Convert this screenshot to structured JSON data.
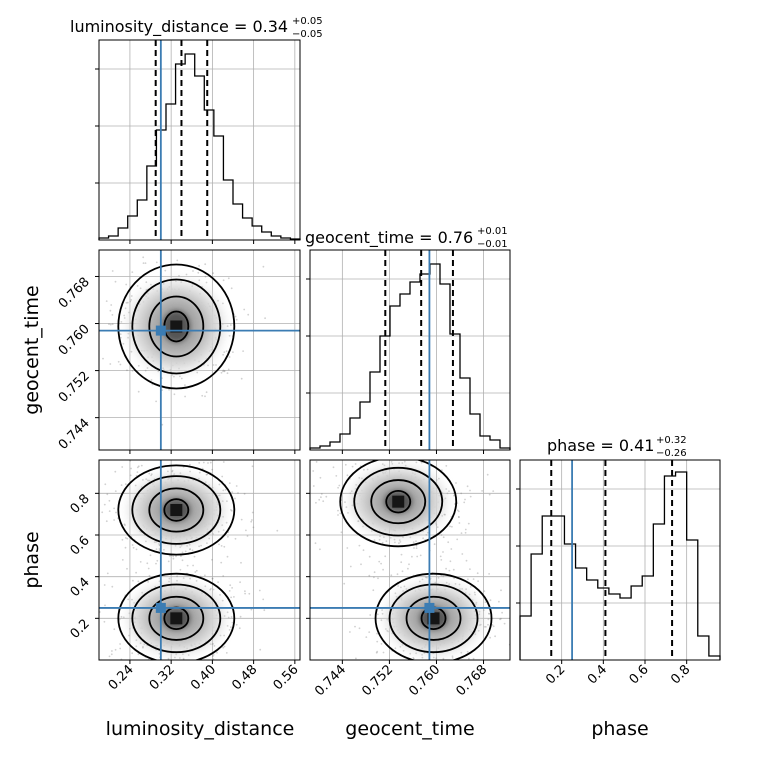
{
  "chart_data": {
    "type": "corner",
    "parameters": [
      "luminosity_distance",
      "geocent_time",
      "phase"
    ],
    "titles": [
      {
        "label": "luminosity_distance = 0.34",
        "sup": "+0.05",
        "sub": "−0.05"
      },
      {
        "label": "geocent_time = 0.76",
        "sup": "+0.01",
        "sub": "−0.01"
      },
      {
        "label": "phase = 0.41",
        "sup": "+0.32",
        "sub": "−0.26"
      }
    ],
    "axis_labels": [
      "luminosity_distance",
      "geocent_time",
      "phase"
    ],
    "ranges": {
      "luminosity_distance": [
        0.18,
        0.57
      ],
      "geocent_time": [
        0.7385,
        0.7725
      ],
      "phase": [
        0.0,
        0.96
      ]
    },
    "ticks": {
      "luminosity_distance": {
        "values": [
          0.24,
          0.32,
          0.4,
          0.48,
          0.56
        ],
        "labels": [
          "0.24",
          "0.32",
          "0.40",
          "0.48",
          "0.56"
        ]
      },
      "geocent_time": {
        "values": [
          0.744,
          0.752,
          0.76,
          0.768
        ],
        "labels": [
          "0.744",
          "0.752",
          "0.760",
          "0.768"
        ]
      },
      "phase": {
        "values": [
          0.2,
          0.4,
          0.6,
          0.8
        ],
        "labels": [
          "0.2",
          "0.4",
          "0.6",
          "0.8"
        ]
      }
    },
    "truths": {
      "luminosity_distance": 0.3,
      "geocent_time": 0.7588,
      "phase": 0.25
    },
    "quantiles": {
      "luminosity_distance": [
        0.29,
        0.34,
        0.39
      ],
      "geocent_time": [
        0.7513,
        0.7574,
        0.7628
      ],
      "phase": [
        0.15,
        0.41,
        0.73
      ]
    },
    "histograms": {
      "luminosity_distance": [
        0.01,
        0.02,
        0.06,
        0.12,
        0.2,
        0.37,
        0.55,
        0.68,
        0.88,
        0.93,
        0.82,
        0.65,
        0.52,
        0.3,
        0.18,
        0.11,
        0.07,
        0.04,
        0.02,
        0.01,
        0.005
      ],
      "geocent_time": [
        0.01,
        0.02,
        0.04,
        0.08,
        0.16,
        0.24,
        0.39,
        0.57,
        0.72,
        0.78,
        0.84,
        0.88,
        0.93,
        0.83,
        0.58,
        0.36,
        0.18,
        0.07,
        0.05,
        0.01
      ],
      "phase": [
        0.22,
        0.53,
        0.72,
        0.72,
        0.58,
        0.46,
        0.4,
        0.36,
        0.33,
        0.31,
        0.37,
        0.42,
        0.68,
        0.92,
        0.94,
        0.6,
        0.12,
        0.02
      ]
    },
    "density_modes": {
      "luminosity_distance_vs_geocent_time": [
        {
          "x": 0.33,
          "y": 0.7595
        }
      ],
      "luminosity_distance_vs_phase": [
        {
          "x": 0.33,
          "y": 0.72
        },
        {
          "x": 0.33,
          "y": 0.2
        }
      ],
      "geocent_time_vs_phase": [
        {
          "x": 0.7535,
          "y": 0.76
        },
        {
          "x": 0.7595,
          "y": 0.2
        }
      ]
    },
    "grid": true
  }
}
